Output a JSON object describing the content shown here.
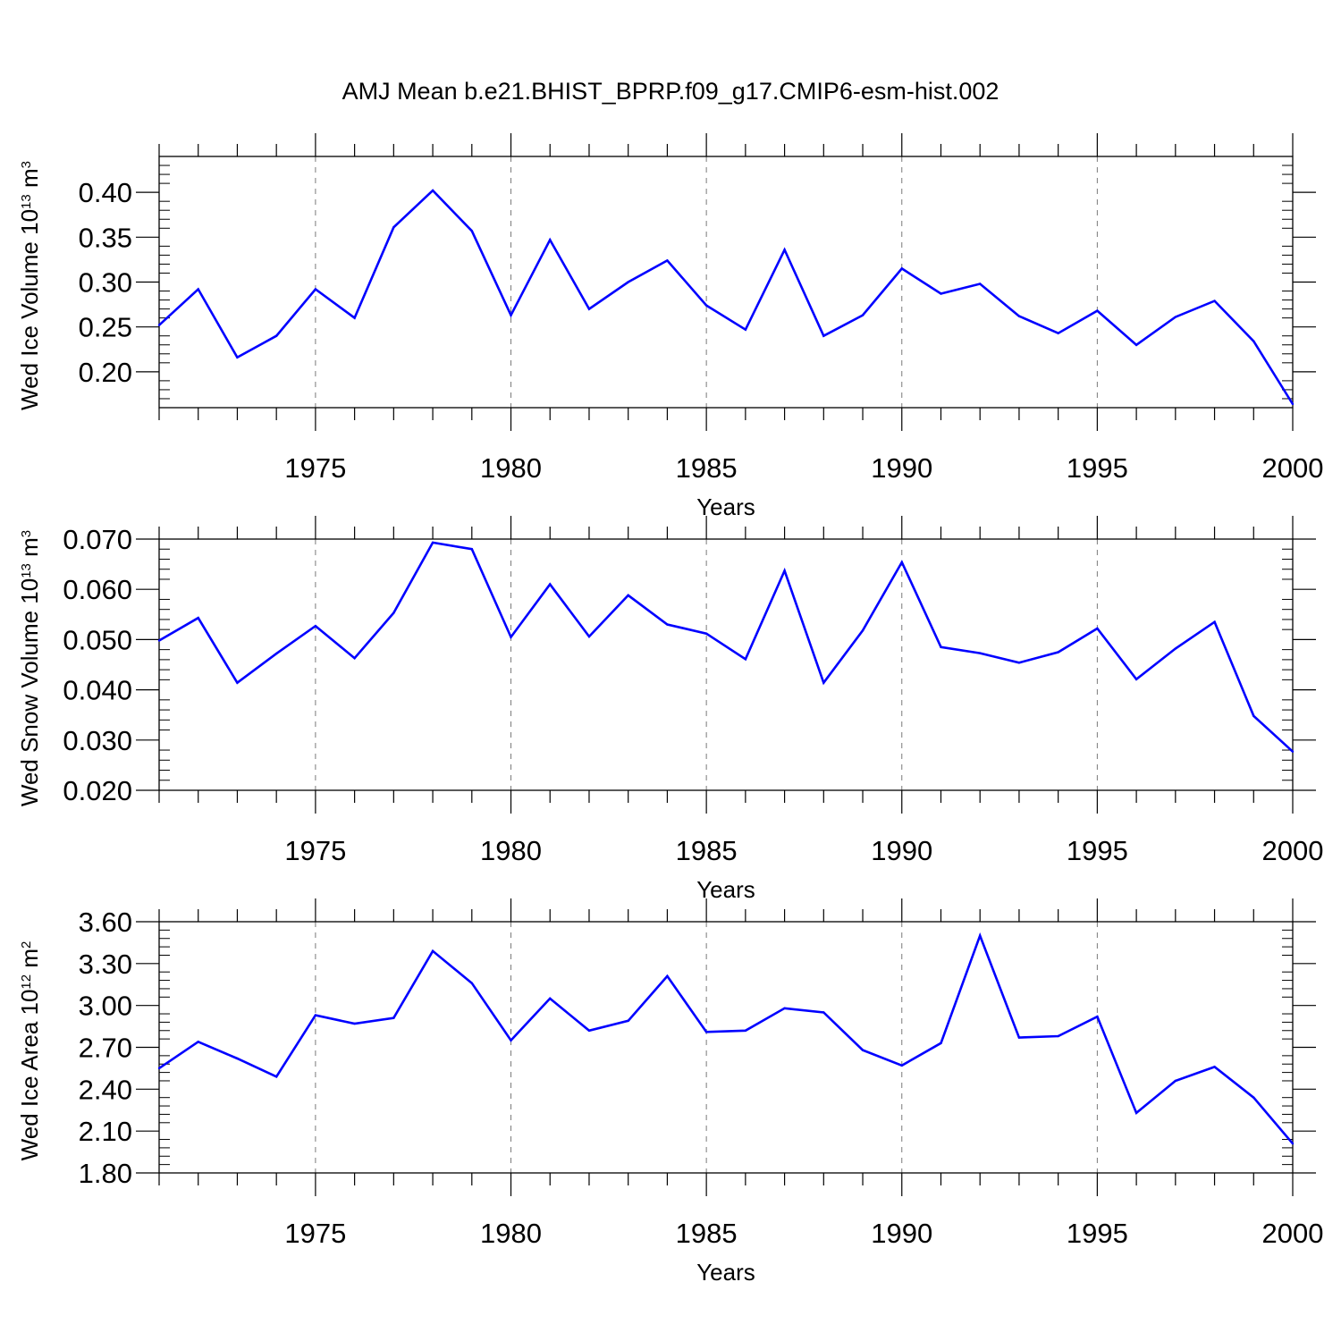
{
  "title": "AMJ Mean b.e21.BHIST_BPRP.f09_g17.CMIP6-esm-hist.002",
  "line_color": "#0000ff",
  "chart_data": [
    {
      "type": "line",
      "xlabel": "Years",
      "ylabel": {
        "prefix": "Wed Ice Volume 10",
        "exp": "13",
        "unit": " m",
        "unit_exp": "3"
      },
      "xlim": [
        1971,
        2000
      ],
      "ylim": [
        0.16,
        0.44
      ],
      "x_ticks": [
        1975,
        1980,
        1985,
        1990,
        1995,
        2000
      ],
      "y_ticks": [
        0.2,
        0.25,
        0.3,
        0.35,
        0.4
      ],
      "y_tick_labels": [
        "0.20",
        "0.25",
        "0.30",
        "0.35",
        "0.40"
      ],
      "grid": "vertical dashed at major x ticks",
      "x": [
        1971,
        1972,
        1973,
        1974,
        1975,
        1976,
        1977,
        1978,
        1979,
        1980,
        1981,
        1982,
        1983,
        1984,
        1985,
        1986,
        1987,
        1988,
        1989,
        1990,
        1991,
        1992,
        1993,
        1994,
        1995,
        1996,
        1997,
        1998,
        1999,
        2000
      ],
      "values": [
        0.252,
        0.292,
        0.216,
        0.24,
        0.292,
        0.26,
        0.361,
        0.402,
        0.357,
        0.263,
        0.347,
        0.27,
        0.3,
        0.324,
        0.274,
        0.247,
        0.336,
        0.24,
        0.263,
        0.315,
        0.287,
        0.298,
        0.262,
        0.243,
        0.268,
        0.23,
        0.261,
        0.279,
        0.234,
        0.164
      ]
    },
    {
      "type": "line",
      "xlabel": "Years",
      "ylabel": {
        "prefix": "Wed Snow Volume 10",
        "exp": "13",
        "unit": " m",
        "unit_exp": "3"
      },
      "xlim": [
        1971,
        2000
      ],
      "ylim": [
        0.02,
        0.07
      ],
      "x_ticks": [
        1975,
        1980,
        1985,
        1990,
        1995,
        2000
      ],
      "y_ticks": [
        0.02,
        0.03,
        0.04,
        0.05,
        0.06,
        0.07
      ],
      "y_tick_labels": [
        "0.020",
        "0.030",
        "0.040",
        "0.050",
        "0.060",
        "0.070"
      ],
      "grid": "vertical dashed at major x ticks",
      "x": [
        1971,
        1972,
        1973,
        1974,
        1975,
        1976,
        1977,
        1978,
        1979,
        1980,
        1981,
        1982,
        1983,
        1984,
        1985,
        1986,
        1987,
        1988,
        1989,
        1990,
        1991,
        1992,
        1993,
        1994,
        1995,
        1996,
        1997,
        1998,
        1999,
        2000
      ],
      "values": [
        0.0498,
        0.0543,
        0.0414,
        0.0472,
        0.0527,
        0.0463,
        0.0553,
        0.0693,
        0.068,
        0.0505,
        0.061,
        0.0506,
        0.0588,
        0.053,
        0.0512,
        0.0461,
        0.0637,
        0.0414,
        0.0518,
        0.0654,
        0.0485,
        0.0473,
        0.0454,
        0.0475,
        0.0522,
        0.0421,
        0.0482,
        0.0535,
        0.0348,
        0.0277
      ]
    },
    {
      "type": "line",
      "xlabel": "Years",
      "ylabel": {
        "prefix": "Wed Ice Area 10",
        "exp": "12",
        "unit": " m",
        "unit_exp": "2"
      },
      "xlim": [
        1971,
        2000
      ],
      "ylim": [
        1.8,
        3.6
      ],
      "x_ticks": [
        1975,
        1980,
        1985,
        1990,
        1995,
        2000
      ],
      "y_ticks": [
        1.8,
        2.1,
        2.4,
        2.7,
        3.0,
        3.3,
        3.6
      ],
      "y_tick_labels": [
        "1.80",
        "2.10",
        "2.40",
        "2.70",
        "3.00",
        "3.30",
        "3.60"
      ],
      "grid": "vertical dashed at major x ticks",
      "x": [
        1971,
        1972,
        1973,
        1974,
        1975,
        1976,
        1977,
        1978,
        1979,
        1980,
        1981,
        1982,
        1983,
        1984,
        1985,
        1986,
        1987,
        1988,
        1989,
        1990,
        1991,
        1992,
        1993,
        1994,
        1995,
        1996,
        1997,
        1998,
        1999,
        2000
      ],
      "values": [
        2.55,
        2.74,
        2.62,
        2.49,
        2.93,
        2.87,
        2.91,
        3.39,
        3.16,
        2.75,
        3.05,
        2.82,
        2.89,
        3.21,
        2.81,
        2.82,
        2.98,
        2.95,
        2.68,
        2.57,
        2.73,
        3.5,
        2.77,
        2.78,
        2.92,
        2.23,
        2.46,
        2.56,
        2.34,
        2.01
      ]
    }
  ]
}
